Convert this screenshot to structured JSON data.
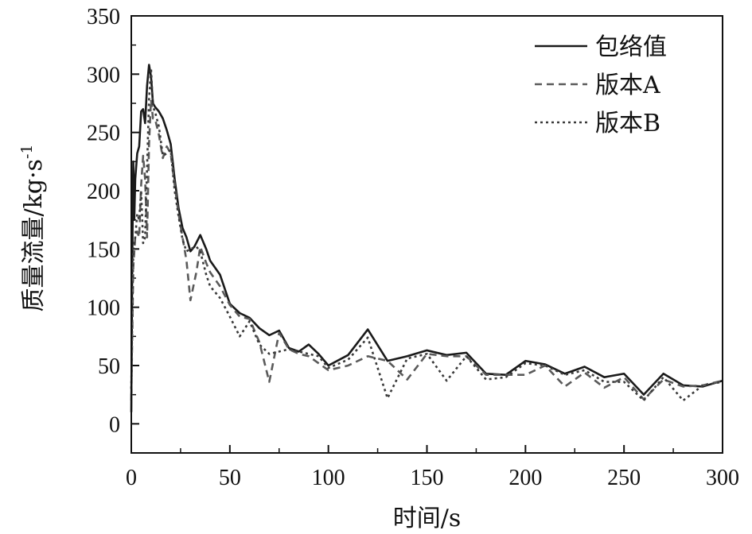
{
  "chart_data": {
    "type": "line",
    "title": "",
    "xlabel": "时间/s",
    "ylabel_main": "质量流量/kg·s",
    "ylabel_sup": "-1",
    "xlim": [
      0,
      300
    ],
    "ylim": [
      -25,
      350
    ],
    "x_ticks": [
      0,
      50,
      100,
      150,
      200,
      250,
      300
    ],
    "y_ticks": [
      0,
      50,
      100,
      150,
      200,
      250,
      300,
      350
    ],
    "legend_position": "top-right",
    "series": [
      {
        "name": "包络值",
        "style": "solid",
        "color": "#1a1a1a",
        "points": [
          [
            0,
            10
          ],
          [
            0.5,
            140
          ],
          [
            1,
            225
          ],
          [
            1.5,
            175
          ],
          [
            2,
            210
          ],
          [
            3,
            232
          ],
          [
            4,
            238
          ],
          [
            5,
            268
          ],
          [
            6,
            270
          ],
          [
            7,
            258
          ],
          [
            8,
            290
          ],
          [
            9,
            308
          ],
          [
            10,
            298
          ],
          [
            11,
            275
          ],
          [
            12,
            272
          ],
          [
            14,
            268
          ],
          [
            16,
            262
          ],
          [
            18,
            252
          ],
          [
            20,
            240
          ],
          [
            22,
            210
          ],
          [
            24,
            185
          ],
          [
            26,
            168
          ],
          [
            28,
            160
          ],
          [
            30,
            148
          ],
          [
            32,
            152
          ],
          [
            35,
            162
          ],
          [
            38,
            150
          ],
          [
            40,
            140
          ],
          [
            45,
            128
          ],
          [
            50,
            103
          ],
          [
            55,
            95
          ],
          [
            60,
            91
          ],
          [
            65,
            82
          ],
          [
            70,
            76
          ],
          [
            75,
            80
          ],
          [
            80,
            65
          ],
          [
            85,
            62
          ],
          [
            90,
            68
          ],
          [
            95,
            60
          ],
          [
            100,
            50
          ],
          [
            110,
            59
          ],
          [
            120,
            81
          ],
          [
            130,
            54
          ],
          [
            140,
            58
          ],
          [
            150,
            63
          ],
          [
            160,
            59
          ],
          [
            170,
            61
          ],
          [
            180,
            43
          ],
          [
            190,
            42
          ],
          [
            200,
            54
          ],
          [
            210,
            51
          ],
          [
            220,
            43
          ],
          [
            230,
            49
          ],
          [
            240,
            40
          ],
          [
            250,
            43
          ],
          [
            260,
            25
          ],
          [
            270,
            43
          ],
          [
            280,
            33
          ],
          [
            290,
            32
          ],
          [
            300,
            37
          ]
        ]
      },
      {
        "name": "版本A",
        "style": "dashed",
        "color": "#5a5a5a",
        "points": [
          [
            0,
            20
          ],
          [
            1,
            135
          ],
          [
            2,
            160
          ],
          [
            3,
            165
          ],
          [
            4,
            160
          ],
          [
            5,
            205
          ],
          [
            6,
            230
          ],
          [
            7,
            210
          ],
          [
            8,
            160
          ],
          [
            9,
            240
          ],
          [
            10,
            278
          ],
          [
            11,
            262
          ],
          [
            12,
            262
          ],
          [
            14,
            248
          ],
          [
            16,
            228
          ],
          [
            18,
            238
          ],
          [
            20,
            232
          ],
          [
            22,
            205
          ],
          [
            24,
            180
          ],
          [
            26,
            160
          ],
          [
            28,
            140
          ],
          [
            30,
            106
          ],
          [
            33,
            130
          ],
          [
            35,
            152
          ],
          [
            38,
            138
          ],
          [
            40,
            130
          ],
          [
            45,
            118
          ],
          [
            50,
            102
          ],
          [
            55,
            92
          ],
          [
            60,
            90
          ],
          [
            65,
            70
          ],
          [
            70,
            36
          ],
          [
            75,
            78
          ],
          [
            80,
            64
          ],
          [
            85,
            60
          ],
          [
            90,
            58
          ],
          [
            100,
            46
          ],
          [
            110,
            50
          ],
          [
            120,
            58
          ],
          [
            130,
            54
          ],
          [
            140,
            38
          ],
          [
            150,
            60
          ],
          [
            160,
            58
          ],
          [
            170,
            58
          ],
          [
            180,
            42
          ],
          [
            190,
            42
          ],
          [
            200,
            42
          ],
          [
            210,
            50
          ],
          [
            220,
            32
          ],
          [
            230,
            44
          ],
          [
            240,
            31
          ],
          [
            250,
            40
          ],
          [
            260,
            21
          ],
          [
            270,
            38
          ],
          [
            280,
            32
          ],
          [
            290,
            33
          ],
          [
            300,
            37
          ]
        ]
      },
      {
        "name": "版本B",
        "style": "dotted",
        "color": "#3a3a3a",
        "points": [
          [
            0,
            30
          ],
          [
            1,
            150
          ],
          [
            2,
            160
          ],
          [
            3,
            180
          ],
          [
            4,
            175
          ],
          [
            5,
            200
          ],
          [
            6,
            155
          ],
          [
            7,
            160
          ],
          [
            8,
            220
          ],
          [
            9,
            278
          ],
          [
            10,
            305
          ],
          [
            11,
            272
          ],
          [
            12,
            268
          ],
          [
            14,
            255
          ],
          [
            16,
            230
          ],
          [
            18,
            232
          ],
          [
            20,
            235
          ],
          [
            22,
            200
          ],
          [
            24,
            178
          ],
          [
            26,
            158
          ],
          [
            28,
            148
          ],
          [
            30,
            150
          ],
          [
            33,
            152
          ],
          [
            35,
            148
          ],
          [
            38,
            128
          ],
          [
            40,
            118
          ],
          [
            45,
            108
          ],
          [
            50,
            92
          ],
          [
            55,
            75
          ],
          [
            60,
            88
          ],
          [
            65,
            68
          ],
          [
            70,
            60
          ],
          [
            75,
            62
          ],
          [
            80,
            64
          ],
          [
            85,
            62
          ],
          [
            90,
            60
          ],
          [
            95,
            58
          ],
          [
            100,
            48
          ],
          [
            110,
            55
          ],
          [
            120,
            74
          ],
          [
            130,
            22
          ],
          [
            140,
            56
          ],
          [
            150,
            60
          ],
          [
            160,
            37
          ],
          [
            170,
            58
          ],
          [
            180,
            38
          ],
          [
            190,
            40
          ],
          [
            200,
            52
          ],
          [
            210,
            50
          ],
          [
            220,
            42
          ],
          [
            230,
            46
          ],
          [
            240,
            36
          ],
          [
            250,
            36
          ],
          [
            260,
            20
          ],
          [
            270,
            40
          ],
          [
            280,
            20
          ],
          [
            290,
            33
          ],
          [
            300,
            36
          ]
        ]
      }
    ]
  }
}
